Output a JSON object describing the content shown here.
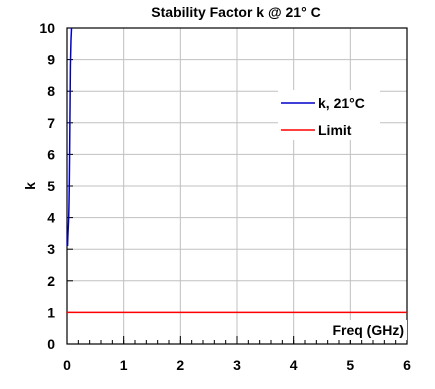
{
  "chart_data": {
    "type": "line",
    "title": "Stability Factor k @ 21° C",
    "xlabel": "Freq (GHz)",
    "ylabel": "k",
    "xlim": [
      0,
      6
    ],
    "ylim": [
      0,
      10
    ],
    "xticks": [
      "0",
      "1",
      "2",
      "3",
      "4",
      "5",
      "6"
    ],
    "yticks": [
      "0",
      "1",
      "2",
      "3",
      "4",
      "5",
      "6",
      "7",
      "8",
      "9",
      "10"
    ],
    "grid": true,
    "legend_position": "right",
    "series": [
      {
        "name": "k, 21°C",
        "color": "#0000cc",
        "x": [
          0.01,
          0.015,
          0.02,
          0.025,
          0.03,
          0.035,
          0.04,
          0.045,
          0.05,
          0.055,
          0.06,
          0.07,
          0.08
        ],
        "y": [
          3.1,
          3.4,
          3.6,
          3.8,
          4.0,
          4.4,
          5.0,
          5.8,
          6.8,
          7.8,
          8.8,
          9.6,
          10.0
        ]
      },
      {
        "name": "Limit",
        "color": "#ff0000",
        "x": [
          0,
          6
        ],
        "y": [
          1,
          1
        ]
      }
    ]
  }
}
